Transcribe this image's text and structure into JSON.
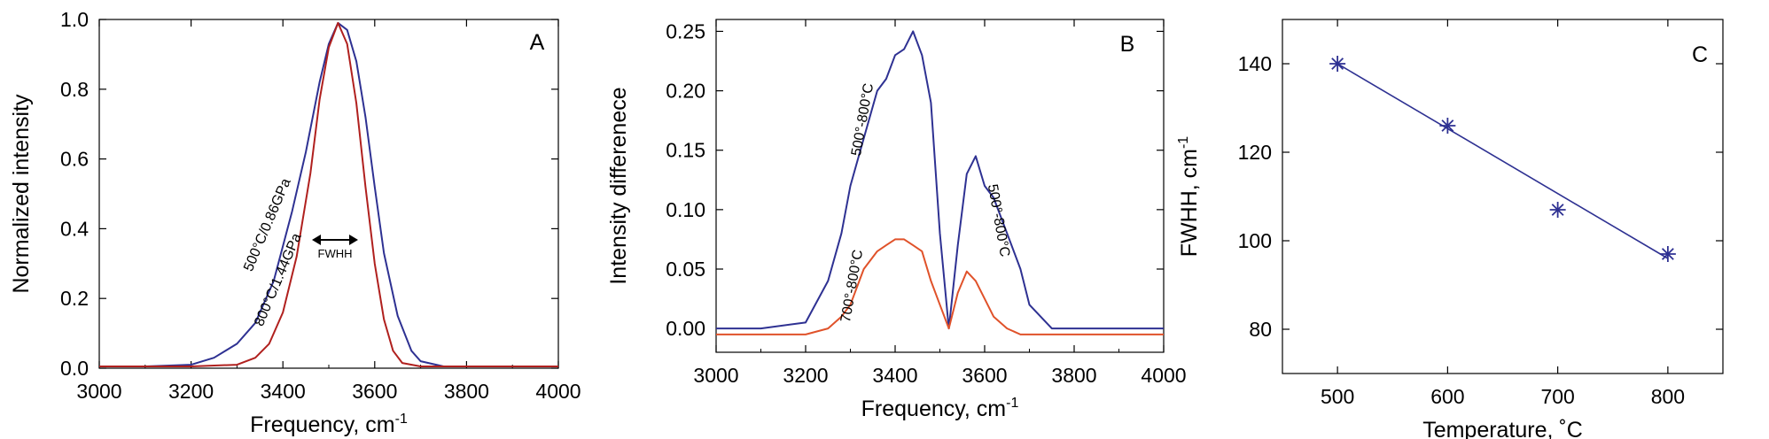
{
  "chart_data": [
    {
      "panel": "A",
      "type": "line",
      "xlabel": "Frequency, cm",
      "xlabel_sup": "-1",
      "ylabel": "Normalized intensity",
      "xlim": [
        3000,
        4000
      ],
      "ylim": [
        0,
        1.0
      ],
      "x_ticks": [
        3000,
        3200,
        3400,
        3600,
        3800,
        4000
      ],
      "y_ticks": [
        0.0,
        0.2,
        0.4,
        0.6,
        0.8,
        1.0
      ],
      "y_tick_labels": [
        "0.0",
        "0.2",
        "0.4",
        "0.6",
        "0.8",
        "1.0"
      ],
      "series": [
        {
          "name": "500°C/0.86GPa",
          "color": "#2e3192",
          "x": [
            3000,
            3100,
            3200,
            3250,
            3300,
            3340,
            3380,
            3420,
            3450,
            3480,
            3500,
            3520,
            3540,
            3560,
            3580,
            3600,
            3620,
            3650,
            3680,
            3700,
            3750,
            3800,
            3900,
            4000
          ],
          "y": [
            0.005,
            0.005,
            0.01,
            0.03,
            0.07,
            0.13,
            0.25,
            0.45,
            0.62,
            0.82,
            0.93,
            0.99,
            0.97,
            0.88,
            0.72,
            0.52,
            0.33,
            0.15,
            0.05,
            0.02,
            0.005,
            0.005,
            0.005,
            0.005
          ]
        },
        {
          "name": "800°C/1.44GPa",
          "color": "#b0201e",
          "x": [
            3000,
            3100,
            3200,
            3300,
            3340,
            3370,
            3400,
            3430,
            3460,
            3480,
            3500,
            3520,
            3540,
            3560,
            3580,
            3600,
            3620,
            3640,
            3660,
            3700,
            3800,
            3900,
            4000
          ],
          "y": [
            0.005,
            0.005,
            0.005,
            0.01,
            0.03,
            0.07,
            0.16,
            0.32,
            0.56,
            0.77,
            0.92,
            0.99,
            0.93,
            0.76,
            0.52,
            0.3,
            0.14,
            0.05,
            0.015,
            0.005,
            0.005,
            0.005,
            0.005
          ]
        }
      ],
      "annotations": {
        "label_500": "500°C/0.86GPa",
        "label_800": "800°C/1.44GPa",
        "fwhh": "FWHH"
      }
    },
    {
      "panel": "B",
      "type": "line",
      "xlabel": "Frequency, cm",
      "xlabel_sup": "-1",
      "ylabel": "Intensity differenece",
      "xlim": [
        3000,
        4000
      ],
      "ylim": [
        -0.02,
        0.26
      ],
      "x_ticks": [
        3000,
        3200,
        3400,
        3600,
        3800,
        4000
      ],
      "y_ticks": [
        0.0,
        0.05,
        0.1,
        0.15,
        0.2,
        0.25
      ],
      "y_tick_labels": [
        "0.00",
        "0.05",
        "0.10",
        "0.15",
        "0.20",
        "0.25"
      ],
      "series": [
        {
          "name": "500°-800°C",
          "color": "#2e3192",
          "x": [
            3000,
            3100,
            3200,
            3250,
            3280,
            3300,
            3330,
            3360,
            3380,
            3400,
            3420,
            3440,
            3460,
            3480,
            3500,
            3520,
            3540,
            3560,
            3580,
            3600,
            3620,
            3650,
            3680,
            3700,
            3750,
            3800,
            3900,
            4000
          ],
          "y": [
            0.0,
            0.0,
            0.005,
            0.04,
            0.08,
            0.12,
            0.16,
            0.2,
            0.21,
            0.23,
            0.235,
            0.25,
            0.23,
            0.19,
            0.08,
            0.0,
            0.07,
            0.13,
            0.145,
            0.12,
            0.11,
            0.08,
            0.05,
            0.02,
            0.0,
            0.0,
            0.0,
            0.0
          ]
        },
        {
          "name": "700°-800°C",
          "color": "#e0522a",
          "x": [
            3000,
            3100,
            3200,
            3250,
            3280,
            3300,
            3330,
            3360,
            3380,
            3400,
            3420,
            3440,
            3460,
            3480,
            3500,
            3520,
            3540,
            3560,
            3580,
            3600,
            3620,
            3650,
            3680,
            3700,
            3750,
            3800,
            3900,
            4000
          ],
          "y": [
            -0.005,
            -0.005,
            -0.005,
            0.0,
            0.01,
            0.02,
            0.05,
            0.065,
            0.07,
            0.075,
            0.075,
            0.07,
            0.065,
            0.04,
            0.02,
            0.0,
            0.03,
            0.048,
            0.04,
            0.025,
            0.01,
            0.0,
            -0.005,
            -0.005,
            -0.005,
            -0.005,
            -0.005,
            -0.005
          ]
        }
      ],
      "annotations": {
        "label_500_800_left": "500°-800°C",
        "label_500_800_right": "500°-800°C",
        "label_700_800": "700°-800°C"
      }
    },
    {
      "panel": "C",
      "type": "scatter",
      "xlabel": "Temperature, ˚C",
      "ylabel": "FWHH, cm",
      "ylabel_sup": "-1",
      "xlim": [
        450,
        850
      ],
      "ylim": [
        70,
        150
      ],
      "x_ticks": [
        500,
        600,
        700,
        800
      ],
      "y_ticks": [
        80,
        100,
        120,
        140
      ],
      "series": [
        {
          "color": "#2e3192",
          "x": [
            500,
            600,
            700,
            800
          ],
          "y": [
            140,
            126,
            107,
            97
          ]
        }
      ],
      "fit_line": {
        "x": [
          500,
          800
        ],
        "y": [
          140,
          96
        ]
      }
    }
  ]
}
